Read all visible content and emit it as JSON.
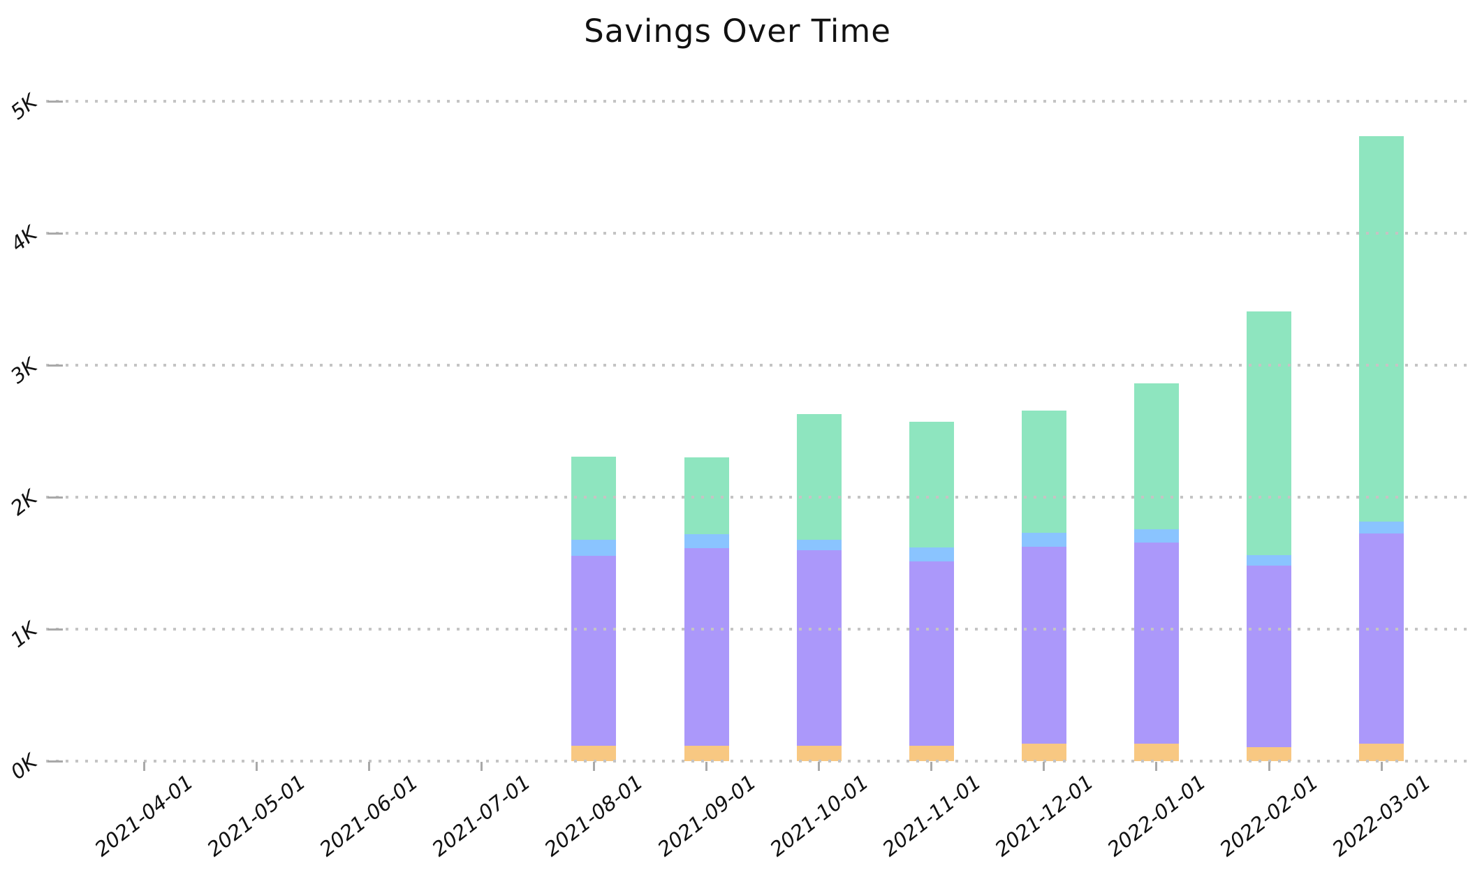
{
  "chart_data": {
    "type": "bar",
    "stacked": true,
    "title": "Savings Over Time",
    "xlabel": "",
    "ylabel": "",
    "grid": "horizontal-dotted",
    "legend": "none",
    "ylim": [
      0,
      5500
    ],
    "y_ticks": [
      {
        "label": "0K",
        "value": 0
      },
      {
        "label": "1K",
        "value": 1000
      },
      {
        "label": "2K",
        "value": 2000
      },
      {
        "label": "3K",
        "value": 3000
      },
      {
        "label": "4K",
        "value": 4000
      },
      {
        "label": "5K",
        "value": 5000
      }
    ],
    "categories": [
      "2021-04-01",
      "2021-05-01",
      "2021-06-01",
      "2021-07-01",
      "2021-08-01",
      "2021-09-01",
      "2021-10-01",
      "2021-11-01",
      "2021-12-01",
      "2022-01-01",
      "2022-02-01",
      "2022-03-01"
    ],
    "series": [
      {
        "name": "orange-segment",
        "color": "#f8c882",
        "values": [
          0,
          0,
          0,
          0,
          115,
          118,
          115,
          118,
          130,
          130,
          105,
          132
        ]
      },
      {
        "name": "purple-segment",
        "color": "#ab98fa",
        "values": [
          0,
          0,
          0,
          0,
          1440,
          1494,
          1484,
          1397,
          1492,
          1527,
          1375,
          1594
        ]
      },
      {
        "name": "blue-segment",
        "color": "#8ac4ff",
        "values": [
          0,
          0,
          0,
          0,
          123,
          110,
          79,
          106,
          106,
          101,
          80,
          88
        ]
      },
      {
        "name": "green-segment",
        "color": "#8ee5bf",
        "values": [
          0,
          0,
          0,
          0,
          627,
          582,
          950,
          949,
          927,
          1104,
          1848,
          2922
        ]
      }
    ],
    "bar_totals": [
      0,
      0,
      0,
      0,
      2305,
      2304,
      2628,
      2570,
      2655,
      2862,
      3408,
      4736
    ]
  },
  "colors": {
    "background": "#ffffff",
    "gridline": "#c4c4c4",
    "tick": "#a9a9a9",
    "text": "#111111"
  }
}
